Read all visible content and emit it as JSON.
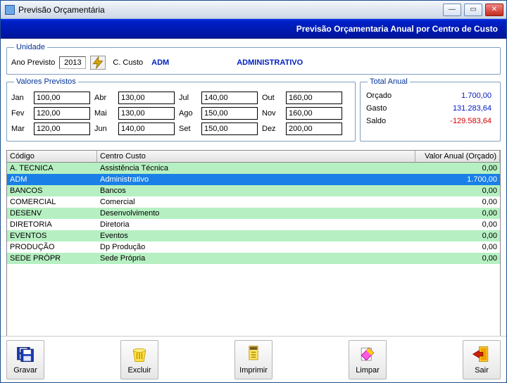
{
  "window": {
    "title": "Previsão Orçamentária"
  },
  "banner": {
    "text": "Previsão Orçamentaria Anual por Centro de Custo"
  },
  "unidade": {
    "legend": "Unidade",
    "ano_label": "Ano Previsto",
    "ano_value": "2013",
    "ccusto_label": "C. Custo",
    "ccusto_code": "ADM",
    "ccusto_name": "ADMINISTRATIVO"
  },
  "valores": {
    "legend": "Valores Previstos",
    "months": {
      "jan": {
        "label": "Jan",
        "value": "100,00"
      },
      "fev": {
        "label": "Fev",
        "value": "120,00"
      },
      "mar": {
        "label": "Mar",
        "value": "120,00"
      },
      "abr": {
        "label": "Abr",
        "value": "130,00"
      },
      "mai": {
        "label": "Mai",
        "value": "130,00"
      },
      "jun": {
        "label": "Jun",
        "value": "140,00"
      },
      "jul": {
        "label": "Jul",
        "value": "140,00"
      },
      "ago": {
        "label": "Ago",
        "value": "150,00"
      },
      "set": {
        "label": "Set",
        "value": "150,00"
      },
      "out": {
        "label": "Out",
        "value": "160,00"
      },
      "nov": {
        "label": "Nov",
        "value": "160,00"
      },
      "dez": {
        "label": "Dez",
        "value": "200,00"
      }
    }
  },
  "total_anual": {
    "legend": "Total Anual",
    "orcado": {
      "label": "Orçado",
      "value": "1.700,00",
      "color": "#0018c0"
    },
    "gasto": {
      "label": "Gasto",
      "value": "131.283,64",
      "color": "#0018c0"
    },
    "saldo": {
      "label": "Saldo",
      "value": "-129.583,64",
      "color": "#d00000"
    }
  },
  "table": {
    "headers": {
      "codigo": "Código",
      "centro": "Centro Custo",
      "valor": "Valor Anual (Orçado)"
    },
    "rows": [
      {
        "codigo": "A. TECNICA",
        "centro": "Assistência Técnica",
        "valor": "0,00",
        "alt": true
      },
      {
        "codigo": "ADM",
        "centro": "Administrativo",
        "valor": "1.700,00",
        "selected": true
      },
      {
        "codigo": "BANCOS",
        "centro": "Bancos",
        "valor": "0,00",
        "alt": true
      },
      {
        "codigo": "COMERCIAL",
        "centro": "Comercial",
        "valor": "0,00"
      },
      {
        "codigo": "DESENV",
        "centro": "Desenvolvimento",
        "valor": "0,00",
        "alt": true
      },
      {
        "codigo": "DIRETORIA",
        "centro": "Diretoria",
        "valor": "0,00"
      },
      {
        "codigo": "EVENTOS",
        "centro": "Eventos",
        "valor": "0,00",
        "alt": true
      },
      {
        "codigo": "PRODUÇÃO",
        "centro": "Dp Produção",
        "valor": "0,00"
      },
      {
        "codigo": "SEDE PRÓPR",
        "centro": "Sede Própria",
        "valor": "0,00",
        "alt": true
      }
    ]
  },
  "footer": {
    "gravar": "Gravar",
    "excluir": "Excluir",
    "imprimir": "Imprimir",
    "limpar": "Limpar",
    "sair": "Sair"
  },
  "colors": {
    "banner_bg": "#001ab3",
    "legend": "#003399",
    "row_alt": "#b6f0c2",
    "row_sel": "#1a7fe6"
  }
}
